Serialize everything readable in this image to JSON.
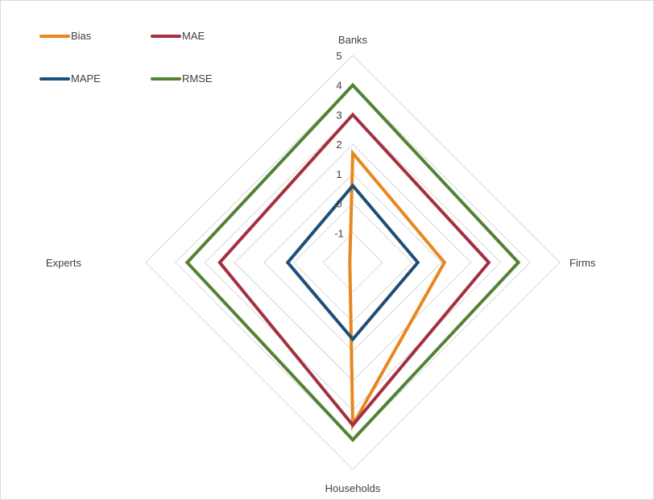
{
  "chart_data": {
    "type": "radar",
    "title": "",
    "axes": [
      "Banks",
      "Firms",
      "Households",
      "Experts"
    ],
    "rlim": [
      -2,
      5
    ],
    "ticks": [
      -1,
      0,
      1,
      2,
      3,
      4,
      5
    ],
    "grid": true,
    "legend_position": "top-left",
    "series": [
      {
        "name": "Bias",
        "color": "#E8871E",
        "values": [
          1.7,
          1.1,
          3.5,
          -1.9
        ]
      },
      {
        "name": "MAE",
        "color": "#A4303F",
        "values": [
          3.0,
          2.6,
          3.5,
          2.5
        ]
      },
      {
        "name": "MAPE",
        "color": "#1F4E79",
        "values": [
          0.6,
          0.2,
          0.6,
          0.2
        ]
      },
      {
        "name": "RMSE",
        "color": "#548235",
        "values": [
          4.0,
          3.6,
          4.0,
          3.6
        ]
      }
    ]
  }
}
